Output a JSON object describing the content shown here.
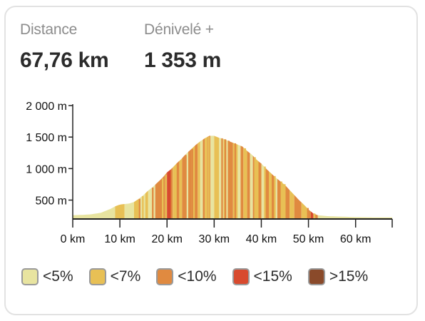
{
  "stats": {
    "distance": {
      "label": "Distance",
      "value": "67,76 km"
    },
    "elevation_gain": {
      "label": "Dénivelé +",
      "value": "1 353 m"
    }
  },
  "legend": [
    {
      "label": "<5%",
      "color": "#e8e4a0"
    },
    {
      "label": "<7%",
      "color": "#e8c055"
    },
    {
      "label": "<10%",
      "color": "#e08a40"
    },
    {
      "label": "<15%",
      "color": "#d84a2e"
    },
    {
      "label": ">15%",
      "color": "#8a4a2a"
    }
  ],
  "chart_data": {
    "type": "area",
    "title": "",
    "xlabel": "",
    "ylabel": "",
    "xlim": [
      0,
      67.76
    ],
    "ylim": [
      200,
      2000
    ],
    "x_ticks": [
      0,
      10,
      20,
      30,
      40,
      50,
      60
    ],
    "x_tick_labels": [
      "0 km",
      "10 km",
      "20 km",
      "30 km",
      "40 km",
      "50 km",
      "60 km"
    ],
    "y_ticks": [
      500,
      1000,
      1500,
      2000
    ],
    "y_tick_labels": [
      "500 m",
      "1 000 m",
      "1 500 m",
      "2 000 m"
    ],
    "grid": false,
    "profile": {
      "x": [
        0,
        2,
        4,
        6,
        7,
        8,
        9,
        10,
        12,
        13,
        14,
        15,
        16,
        17,
        18,
        19,
        20,
        21,
        22,
        23,
        24,
        25,
        26,
        27,
        28,
        29,
        30,
        31,
        32,
        33,
        34,
        35,
        36,
        37,
        38,
        39,
        40,
        41,
        42,
        43,
        44,
        45,
        46,
        47,
        48,
        49,
        50,
        51,
        52,
        54,
        56,
        58,
        60,
        62,
        64,
        67.76
      ],
      "y": [
        260,
        265,
        275,
        300,
        330,
        360,
        400,
        430,
        445,
        470,
        520,
        580,
        650,
        710,
        780,
        850,
        940,
        1000,
        1080,
        1150,
        1230,
        1300,
        1370,
        1430,
        1480,
        1520,
        1520,
        1490,
        1470,
        1440,
        1410,
        1380,
        1350,
        1280,
        1220,
        1140,
        1080,
        1000,
        930,
        860,
        800,
        740,
        660,
        580,
        500,
        430,
        350,
        290,
        260,
        245,
        240,
        235,
        230,
        228,
        226,
        225
      ]
    },
    "gradient_classes": {
      "x": [
        0,
        9,
        11,
        13,
        14,
        15.5,
        16,
        17.5,
        19.5,
        20,
        20.8,
        21.2,
        22,
        22.6,
        23.2,
        24,
        24.5,
        25.2,
        26,
        26.5,
        27,
        27.6,
        28,
        28.6,
        29.2,
        30,
        31,
        32,
        32.6,
        33.2,
        34,
        35,
        35.6,
        36.2,
        37,
        37.6,
        38.2,
        38.8,
        39.4,
        40,
        40.8,
        41.6,
        42.2,
        42.8,
        43.4,
        44.2,
        45,
        46,
        47,
        48.5,
        50,
        50.5,
        51,
        52
      ],
      "class": [
        0,
        1,
        0,
        1,
        0,
        1,
        0,
        2,
        2,
        3,
        2,
        1,
        2,
        1,
        2,
        0,
        2,
        1,
        2,
        1,
        0,
        2,
        1,
        2,
        0,
        1,
        0,
        1,
        0,
        2,
        1,
        0,
        2,
        1,
        2,
        0,
        2,
        1,
        2,
        0,
        2,
        1,
        2,
        0,
        2,
        1,
        2,
        1,
        2,
        1,
        2,
        3,
        2,
        0
      ]
    }
  }
}
